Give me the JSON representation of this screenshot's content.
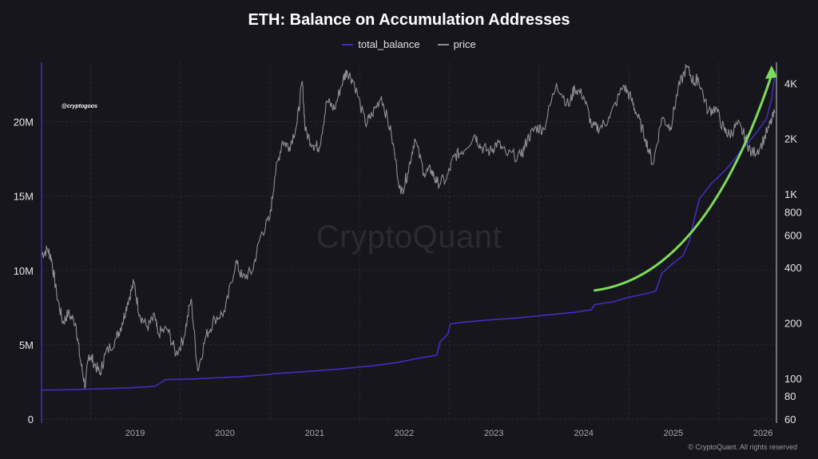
{
  "chart_data": {
    "type": "line",
    "title": "ETH: Balance on Accumulation Addresses",
    "x_ticks": [
      "2019",
      "2020",
      "2021",
      "2022",
      "2023",
      "2024",
      "2025",
      "2026"
    ],
    "x_range": [
      "2018-06-15",
      "2026-08-25"
    ],
    "y_left": {
      "range": [
        0,
        24000000
      ],
      "ticks": [
        0,
        5000000,
        10000000,
        15000000,
        20000000
      ],
      "tick_labels": [
        "0",
        "5M",
        "10M",
        "15M",
        "20M"
      ]
    },
    "y_right": {
      "scale": "log",
      "range": [
        60,
        5200
      ],
      "ticks": [
        60,
        80,
        100,
        200,
        400,
        600,
        800,
        1000,
        2000,
        4000
      ],
      "tick_labels": [
        "60",
        "80",
        "100",
        "200",
        "400",
        "600",
        "800",
        "1K",
        "2K",
        "4K"
      ]
    },
    "grid": true,
    "legend_position": "top-center",
    "series": [
      {
        "name": "total_balance",
        "axis": "left",
        "color": "#3f2dbf",
        "points": [
          [
            "2018-06-15",
            1950000
          ],
          [
            "2018-12-01",
            2000000
          ],
          [
            "2019-06-01",
            2100000
          ],
          [
            "2019-09-20",
            2200000
          ],
          [
            "2019-10-20",
            2500000
          ],
          [
            "2019-11-01",
            2650000
          ],
          [
            "2020-03-01",
            2700000
          ],
          [
            "2020-06-01",
            2780000
          ],
          [
            "2020-09-01",
            2850000
          ],
          [
            "2020-12-31",
            3000000
          ],
          [
            "2021-01-10",
            3050000
          ],
          [
            "2021-06-01",
            3200000
          ],
          [
            "2021-10-01",
            3350000
          ],
          [
            "2021-12-31",
            3500000
          ],
          [
            "2022-03-01",
            3600000
          ],
          [
            "2022-06-01",
            3800000
          ],
          [
            "2022-09-01",
            4100000
          ],
          [
            "2022-11-10",
            4300000
          ],
          [
            "2022-11-25",
            5200000
          ],
          [
            "2022-12-25",
            5700000
          ],
          [
            "2023-01-05",
            6400000
          ],
          [
            "2023-02-15",
            6500000
          ],
          [
            "2023-06-01",
            6650000
          ],
          [
            "2023-10-01",
            6800000
          ],
          [
            "2024-01-01",
            6950000
          ],
          [
            "2024-06-01",
            7200000
          ],
          [
            "2024-08-01",
            7350000
          ],
          [
            "2024-08-15",
            7700000
          ],
          [
            "2024-11-01",
            7900000
          ],
          [
            "2025-01-01",
            8200000
          ],
          [
            "2025-03-01",
            8400000
          ],
          [
            "2025-04-20",
            8600000
          ],
          [
            "2025-05-15",
            9800000
          ],
          [
            "2025-07-01",
            10500000
          ],
          [
            "2025-08-10",
            11000000
          ],
          [
            "2025-09-05",
            12000000
          ],
          [
            "2025-09-25",
            13500000
          ],
          [
            "2025-10-15",
            14800000
          ],
          [
            "2025-12-01",
            15800000
          ],
          [
            "2026-02-01",
            16800000
          ],
          [
            "2026-04-01",
            18000000
          ],
          [
            "2026-06-01",
            19200000
          ],
          [
            "2026-07-15",
            20200000
          ],
          [
            "2026-08-05",
            21500000
          ],
          [
            "2026-08-20",
            23400000
          ]
        ]
      },
      {
        "name": "price",
        "axis": "right",
        "color": "#8e8e93",
        "points": [
          [
            "2018-06-15",
            470
          ],
          [
            "2018-07-10",
            500
          ],
          [
            "2018-07-25",
            450
          ],
          [
            "2018-08-15",
            290
          ],
          [
            "2018-09-10",
            200
          ],
          [
            "2018-10-01",
            225
          ],
          [
            "2018-11-01",
            200
          ],
          [
            "2018-11-20",
            125
          ],
          [
            "2018-12-10",
            90
          ],
          [
            "2018-12-25",
            135
          ],
          [
            "2019-01-10",
            125
          ],
          [
            "2019-02-08",
            105
          ],
          [
            "2019-03-01",
            135
          ],
          [
            "2019-04-15",
            165
          ],
          [
            "2019-05-10",
            200
          ],
          [
            "2019-06-01",
            260
          ],
          [
            "2019-06-26",
            330
          ],
          [
            "2019-07-20",
            220
          ],
          [
            "2019-08-20",
            190
          ],
          [
            "2019-09-20",
            215
          ],
          [
            "2019-10-01",
            175
          ],
          [
            "2019-11-10",
            185
          ],
          [
            "2019-12-15",
            135
          ],
          [
            "2020-01-15",
            165
          ],
          [
            "2020-02-14",
            270
          ],
          [
            "2020-03-12",
            110
          ],
          [
            "2020-04-15",
            170
          ],
          [
            "2020-05-20",
            210
          ],
          [
            "2020-07-01",
            230
          ],
          [
            "2020-08-14",
            430
          ],
          [
            "2020-09-10",
            350
          ],
          [
            "2020-10-20",
            380
          ],
          [
            "2020-11-24",
            600
          ],
          [
            "2020-12-31",
            740
          ],
          [
            "2021-01-20",
            1250
          ],
          [
            "2021-02-20",
            1950
          ],
          [
            "2021-03-20",
            1800
          ],
          [
            "2021-04-20",
            2400
          ],
          [
            "2021-05-12",
            4100
          ],
          [
            "2021-05-24",
            2200
          ],
          [
            "2021-06-25",
            1850
          ],
          [
            "2021-07-20",
            1800
          ],
          [
            "2021-08-20",
            3200
          ],
          [
            "2021-09-20",
            2900
          ],
          [
            "2021-10-25",
            4200
          ],
          [
            "2021-11-10",
            4700
          ],
          [
            "2021-12-10",
            4000
          ],
          [
            "2022-01-24",
            2400
          ],
          [
            "2022-02-20",
            2700
          ],
          [
            "2022-03-30",
            3400
          ],
          [
            "2022-05-10",
            2100
          ],
          [
            "2022-06-18",
            1000
          ],
          [
            "2022-07-15",
            1300
          ],
          [
            "2022-08-13",
            2000
          ],
          [
            "2022-09-20",
            1300
          ],
          [
            "2022-10-20",
            1350
          ],
          [
            "2022-11-10",
            1150
          ],
          [
            "2022-12-20",
            1200
          ],
          [
            "2023-01-20",
            1600
          ],
          [
            "2023-02-20",
            1700
          ],
          [
            "2023-04-15",
            2100
          ],
          [
            "2023-05-10",
            1800
          ],
          [
            "2023-06-15",
            1700
          ],
          [
            "2023-07-15",
            1900
          ],
          [
            "2023-08-20",
            1650
          ],
          [
            "2023-10-20",
            1600
          ],
          [
            "2023-11-15",
            2000
          ],
          [
            "2023-12-20",
            2300
          ],
          [
            "2024-01-20",
            2250
          ],
          [
            "2024-03-12",
            4000
          ],
          [
            "2024-05-01",
            3000
          ],
          [
            "2024-05-25",
            3800
          ],
          [
            "2024-07-01",
            3400
          ],
          [
            "2024-08-05",
            2300
          ],
          [
            "2024-09-06",
            2300
          ],
          [
            "2024-10-15",
            2600
          ],
          [
            "2024-12-10",
            3900
          ],
          [
            "2025-01-10",
            3300
          ],
          [
            "2025-02-03",
            2700
          ],
          [
            "2025-03-10",
            2000
          ],
          [
            "2025-04-09",
            1450
          ],
          [
            "2025-05-15",
            2600
          ],
          [
            "2025-06-20",
            2300
          ],
          [
            "2025-07-20",
            3700
          ],
          [
            "2025-08-24",
            4900
          ],
          [
            "2025-09-25",
            4000
          ],
          [
            "2025-10-10",
            4300
          ],
          [
            "2025-11-20",
            2800
          ],
          [
            "2025-12-20",
            2950
          ],
          [
            "2026-01-25",
            2200
          ],
          [
            "2026-02-15",
            2100
          ],
          [
            "2026-03-20",
            2400
          ],
          [
            "2026-04-20",
            2050
          ],
          [
            "2026-05-15",
            1650
          ],
          [
            "2026-06-20",
            1800
          ],
          [
            "2026-07-25",
            2300
          ],
          [
            "2026-08-20",
            2800
          ]
        ]
      }
    ],
    "annotations": [
      {
        "type": "arrow",
        "color": "#7ddc5a",
        "from": [
          "2024-08-15",
          300
        ],
        "to": [
          "2026-08-05",
          5000
        ]
      }
    ]
  },
  "watermark": "CryptoQuant",
  "handle": "@cryptogoos",
  "footer": "© CryptoQuant. All rights reserved"
}
